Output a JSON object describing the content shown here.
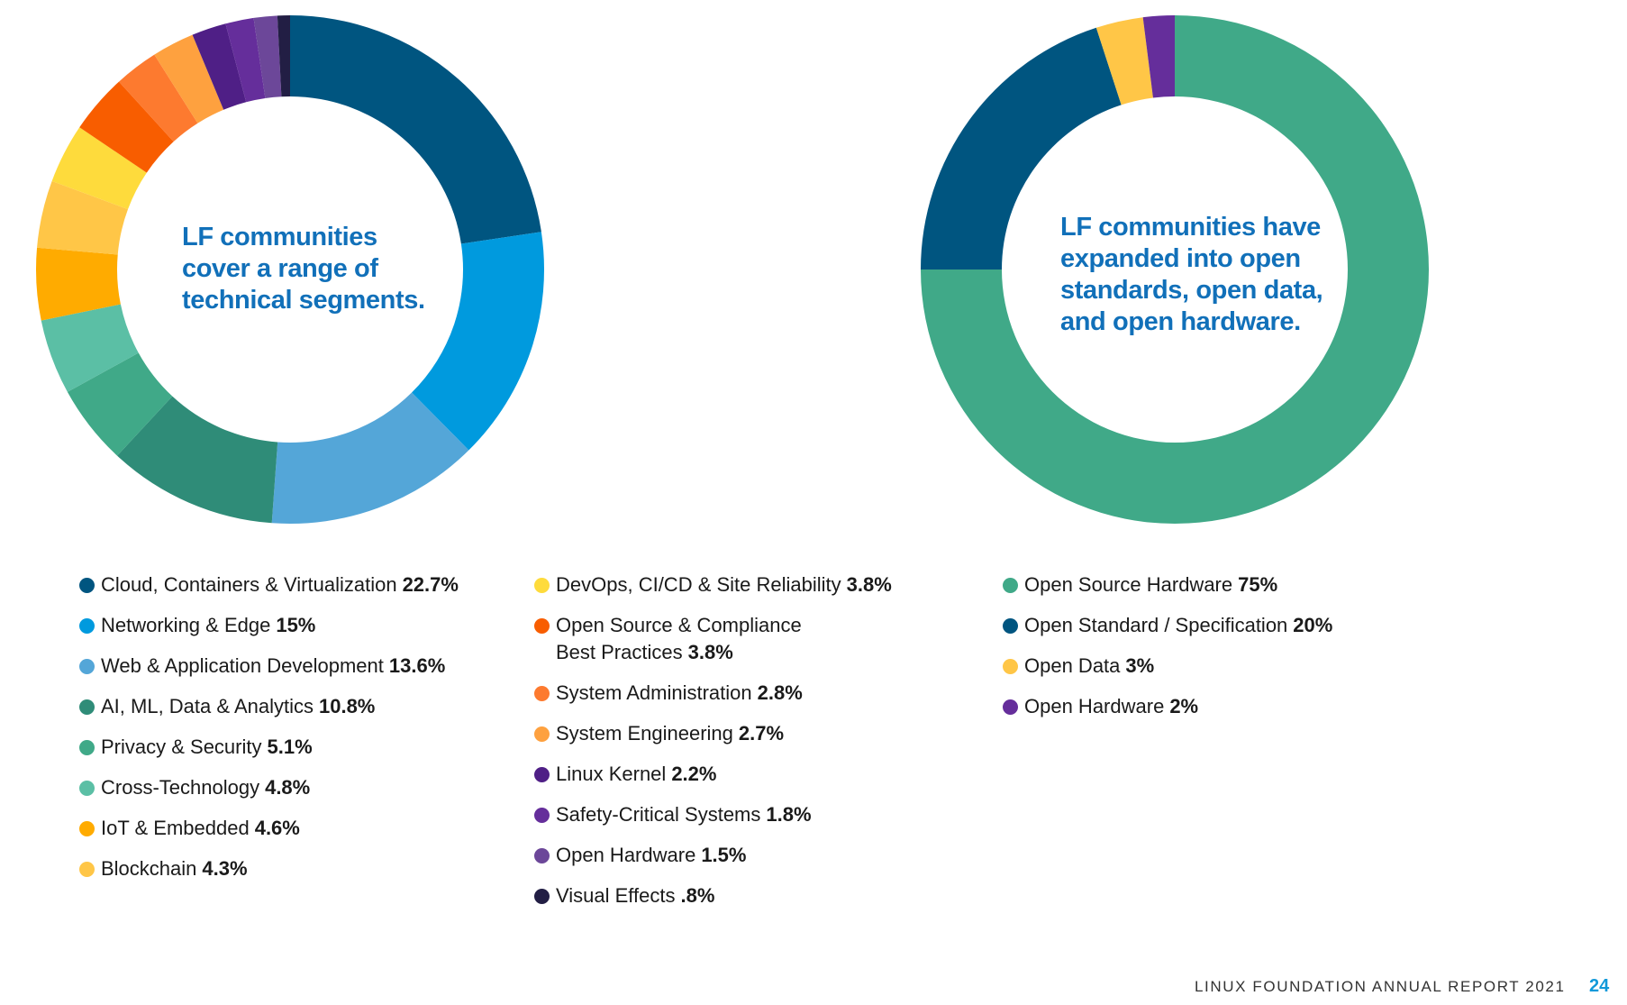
{
  "chart_data": [
    {
      "type": "pie",
      "title": "LF communities cover a range of technical segments.",
      "title_lines": [
        "LF communities",
        "cover a range of",
        "technical segments."
      ],
      "legend_placement": "bottom",
      "slices": [
        {
          "label": "Cloud, Containers & Virtualization",
          "value": 22.7,
          "display": "22.7%",
          "color": "#005580"
        },
        {
          "label": "Networking & Edge",
          "value": 15,
          "display": "15%",
          "color": "#009ade"
        },
        {
          "label": "Web & Application Development",
          "value": 13.6,
          "display": "13.6%",
          "color": "#54a6d8"
        },
        {
          "label": "AI, ML, Data & Analytics",
          "value": 10.8,
          "display": "10.8%",
          "color": "#2f8c78"
        },
        {
          "label": "Privacy & Security",
          "value": 5.1,
          "display": "5.1%",
          "color": "#40a988"
        },
        {
          "label": "Cross-Technology",
          "value": 4.8,
          "display": "4.8%",
          "color": "#5bbfa5"
        },
        {
          "label": "IoT & Embedded",
          "value": 4.6,
          "display": "4.6%",
          "color": "#ffab00"
        },
        {
          "label": "Blockchain",
          "value": 4.3,
          "display": "4.3%",
          "color": "#ffc647"
        },
        {
          "label": "DevOps, CI/CD & Site Reliability",
          "value": 3.8,
          "display": "3.8%",
          "color": "#fedb3c"
        },
        {
          "label": "Open Source & Compliance\nBest Practices",
          "value": 3.8,
          "display": "3.8%",
          "color": "#f85d00"
        },
        {
          "label": "System Administration",
          "value": 2.8,
          "display": "2.8%",
          "color": "#fd7a2f"
        },
        {
          "label": "System Engineering",
          "value": 2.7,
          "display": "2.7%",
          "color": "#fea13f"
        },
        {
          "label": "Linux Kernel",
          "value": 2.2,
          "display": "2.2%",
          "color": "#4f1f86"
        },
        {
          "label": "Safety-Critical Systems",
          "value": 1.8,
          "display": "1.8%",
          "color": "#652e9b"
        },
        {
          "label": "Open Hardware",
          "value": 1.5,
          "display": "1.5%",
          "color": "#6c4799"
        },
        {
          "label": "Visual Effects",
          "value": 0.8,
          "display": ".8%",
          "color": "#221e44"
        }
      ]
    },
    {
      "type": "pie",
      "title": "LF communities have expanded into open standards, open data, and open hardware.",
      "title_lines": [
        "LF communities have",
        "expanded into open",
        "standards, open data,",
        "and open hardware."
      ],
      "legend_placement": "bottom",
      "slices": [
        {
          "label": "Open Source Hardware",
          "value": 75,
          "display": "75%",
          "color": "#40a988"
        },
        {
          "label": "Open Standard / Specification",
          "value": 20,
          "display": "20%",
          "color": "#005580"
        },
        {
          "label": "Open Data",
          "value": 3,
          "display": "3%",
          "color": "#ffc647"
        },
        {
          "label": "Open Hardware",
          "value": 2,
          "display": "2%",
          "color": "#652e9b"
        }
      ]
    }
  ],
  "footer": {
    "report_title": "LINUX FOUNDATION ANNUAL REPORT 2021",
    "page_number": "24"
  }
}
